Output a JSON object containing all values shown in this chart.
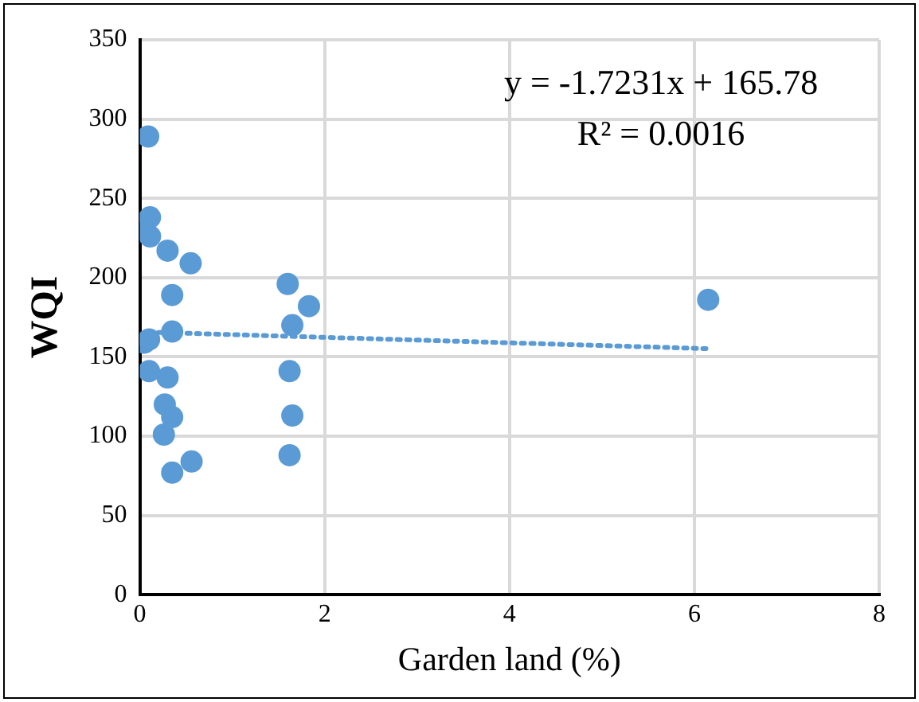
{
  "chart_data": {
    "type": "scatter",
    "xlabel": "Garden land (%)",
    "ylabel": "WQI",
    "annotations": [
      "y = -1.7231x + 165.78",
      "R² = 0.0016"
    ],
    "xlim": [
      0,
      8
    ],
    "xticks": [
      0,
      2,
      4,
      6,
      8
    ],
    "ylim": [
      0,
      350
    ],
    "yticks": [
      0,
      50,
      100,
      150,
      200,
      250,
      300,
      350
    ],
    "grid": true,
    "legend": false,
    "marker": "circle",
    "series": [
      {
        "color": "#5b9bd5",
        "x": [
          0.09,
          0.11,
          0.05,
          0.11,
          0.3,
          0.55,
          0.35,
          0.35,
          0.1,
          0.05,
          0.1,
          0.3,
          0.27,
          0.35,
          0.26,
          0.35,
          0.56,
          1.6,
          1.65,
          1.83,
          1.62,
          1.65,
          1.62,
          6.15
        ],
        "values": [
          289,
          238,
          235,
          226,
          217,
          209,
          189,
          166,
          161,
          159,
          141,
          137,
          120,
          112,
          101,
          77,
          84,
          196,
          170,
          182,
          141,
          113,
          88,
          186
        ]
      },
      {
        "type": "line",
        "color": "#5b9bd5",
        "marker": "none",
        "line_style": "dotted",
        "x": [
          0.2,
          6.15
        ],
        "values": [
          165.44,
          155.18
        ]
      }
    ]
  }
}
